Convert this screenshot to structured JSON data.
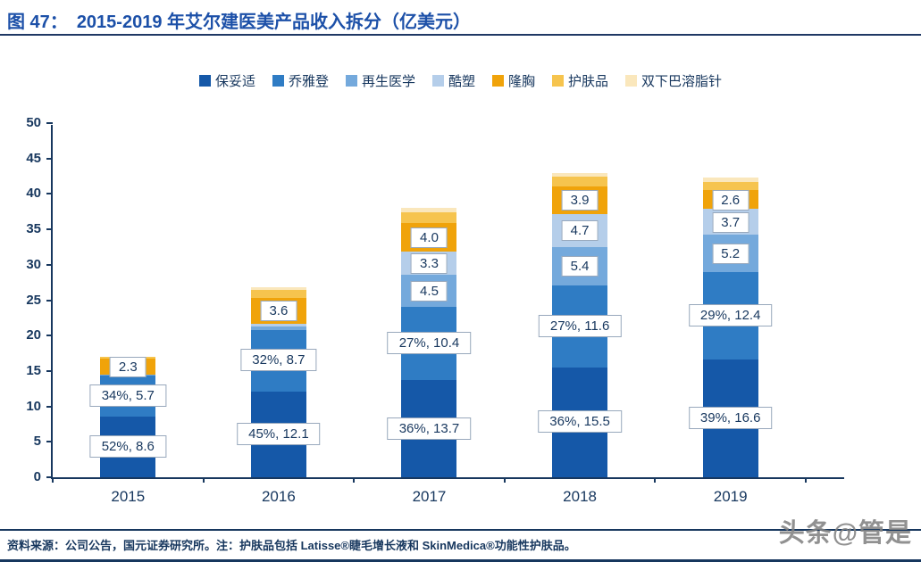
{
  "header": {
    "figure_label": "图 47：",
    "title": "2015-2019 年艾尔建医美产品收入拆分（亿美元）"
  },
  "colors": {
    "title_blue": "#1C50A8",
    "axis_navy": "#17375E",
    "rule_navy": "#1F3864",
    "label_box_border": "#98A8BC"
  },
  "chart_data": {
    "type": "bar",
    "stacked": true,
    "title": "2015-2019 年艾尔建医美产品收入拆分（亿美元）",
    "xlabel": "",
    "ylabel": "",
    "categories": [
      "2015",
      "2016",
      "2017",
      "2018",
      "2019"
    ],
    "ylim": [
      0,
      50
    ],
    "ytick_step": 5,
    "grid": false,
    "legend_position": "top",
    "series": [
      {
        "name": "保妥适",
        "color": "#1558A8",
        "values": [
          8.6,
          12.1,
          13.7,
          15.5,
          16.6
        ],
        "labels": [
          "52%, 8.6",
          "45%, 12.1",
          "36%, 13.7",
          "36%, 15.5",
          "39%, 16.6"
        ],
        "label_style": "boxed-wide"
      },
      {
        "name": "乔雅登",
        "color": "#2F7CC4",
        "values": [
          5.7,
          8.7,
          10.4,
          11.6,
          12.4
        ],
        "labels": [
          "34%, 5.7",
          "32%, 8.7",
          "27%, 10.4",
          "27%, 11.6",
          "29%, 12.4"
        ],
        "label_style": "boxed-wide"
      },
      {
        "name": "再生医学",
        "color": "#74A9DC",
        "values": [
          0.2,
          0.5,
          4.5,
          5.4,
          5.2
        ],
        "labels": [
          null,
          null,
          "4.5",
          "5.4",
          "5.2"
        ],
        "label_style": "boxed"
      },
      {
        "name": "酷塑",
        "color": "#B5CEEA",
        "values": [
          0,
          0.4,
          3.3,
          4.7,
          3.7
        ],
        "labels": [
          null,
          null,
          "3.3",
          "4.7",
          "3.7"
        ],
        "label_style": "boxed"
      },
      {
        "name": "隆胸",
        "color": "#F0A30A",
        "values": [
          2.3,
          3.6,
          4.0,
          3.9,
          2.6
        ],
        "labels": [
          "2.3",
          "3.6",
          "4.0",
          "3.9",
          "2.6"
        ],
        "label_style": "boxed"
      },
      {
        "name": "护肤品",
        "color": "#F6C44E",
        "values": [
          0.2,
          1.2,
          1.5,
          1.3,
          1.2
        ],
        "labels": [
          null,
          null,
          null,
          null,
          null
        ],
        "label_style": "boxed"
      },
      {
        "name": "双下巴溶脂针",
        "color": "#FAE7BC",
        "values": [
          0,
          0.3,
          0.6,
          0.6,
          0.6
        ],
        "labels": [
          null,
          null,
          null,
          null,
          null
        ],
        "label_style": "boxed"
      }
    ]
  },
  "footer": {
    "text": "资料来源：公司公告，国元证券研究所。注：护肤品包括 Latisse®睫毛增长液和 SkinMedica®功能性护肤品。"
  },
  "watermark": {
    "text": "头条@管是"
  }
}
